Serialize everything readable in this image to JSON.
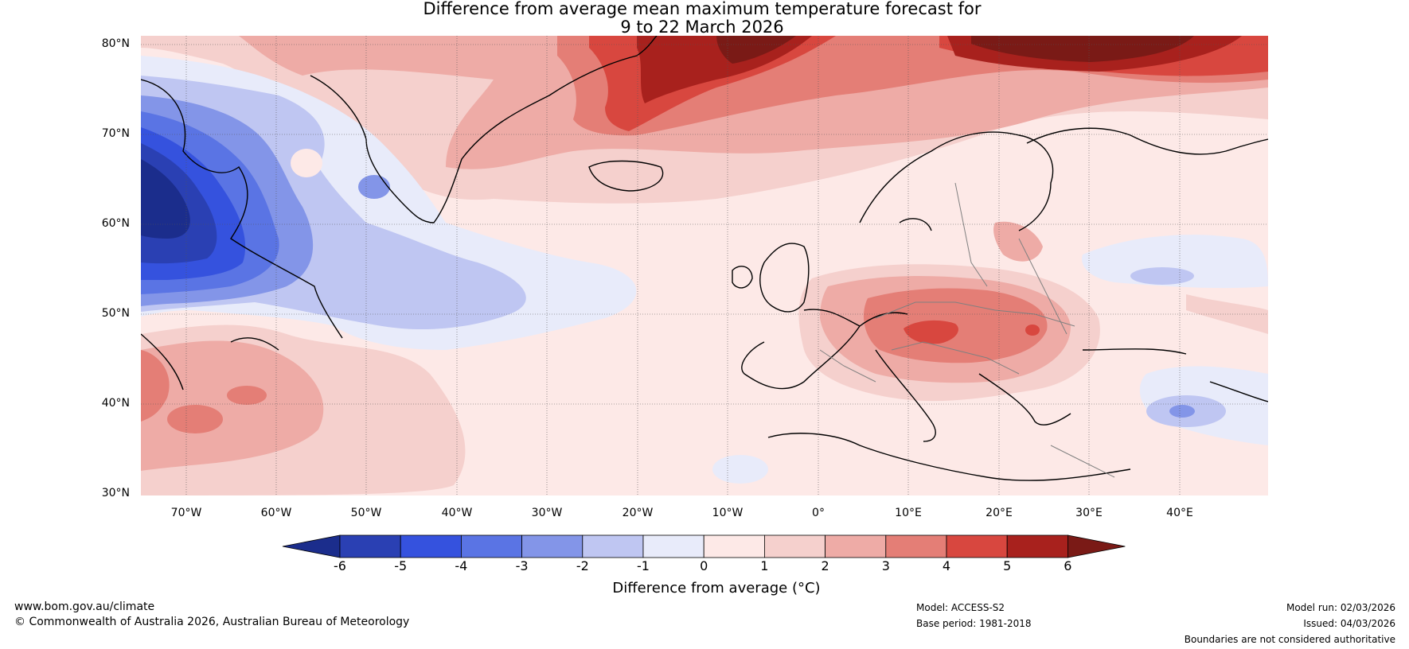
{
  "title": {
    "line1": "Difference from average mean maximum temperature forecast for",
    "line2": "9 to 22 March 2026"
  },
  "map": {
    "lat_labels": [
      "80°N",
      "70°N",
      "60°N",
      "50°N",
      "40°N",
      "30°N"
    ],
    "lon_labels": [
      "70°W",
      "60°W",
      "50°W",
      "40°W",
      "30°W",
      "20°W",
      "10°W",
      "0°",
      "10°E",
      "20°E",
      "30°E",
      "40°E"
    ],
    "lat_range": [
      30,
      81
    ],
    "lon_range": [
      -75,
      50
    ]
  },
  "colorbar": {
    "title": "Difference from average (°C)",
    "ticks": [
      "-6",
      "-5",
      "-4",
      "-3",
      "-2",
      "-1",
      "0",
      "1",
      "2",
      "3",
      "4",
      "5",
      "6"
    ],
    "colors": [
      "#1b2d8c",
      "#2a40b3",
      "#3552de",
      "#5a74e4",
      "#8395e8",
      "#bfc6f2",
      "#e8ebfa",
      "#fde9e7",
      "#f5d0cd",
      "#eeaba6",
      "#e47e76",
      "#d8473f",
      "#a8211d",
      "#7a1a16"
    ]
  },
  "footer": {
    "url": "www.bom.gov.au/climate",
    "copyright": "© Commonwealth of Australia 2026, Australian Bureau of Meteorology",
    "model": "Model: ACCESS-S2",
    "base_period": "Base period: 1981-2018",
    "model_run": "Model run: 02/03/2026",
    "issued": "Issued: 04/03/2026",
    "disclaimer": "Boundaries are not considered authoritative"
  }
}
